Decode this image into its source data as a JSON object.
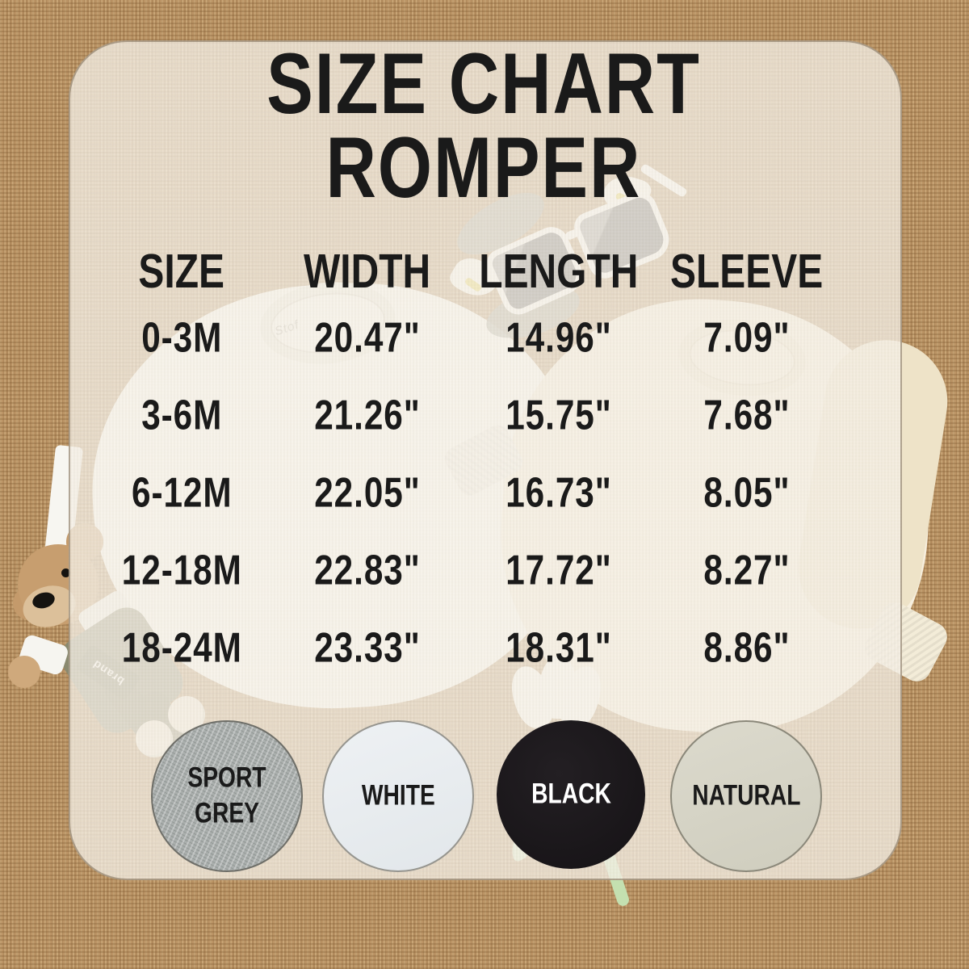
{
  "title": {
    "line1": "SIZE CHART",
    "line2": "ROMPER"
  },
  "table": {
    "headers": {
      "size": "SIZE",
      "width": "WIDTH",
      "length": "LENGTH",
      "sleeve": "SLEEVE"
    },
    "rows": [
      {
        "size": "0-3M",
        "width": "20.47\"",
        "length": "14.96\"",
        "sleeve": "7.09\""
      },
      {
        "size": "3-6M",
        "width": "21.26\"",
        "length": "15.75\"",
        "sleeve": "7.68\""
      },
      {
        "size": "6-12M",
        "width": "22.05\"",
        "length": "16.73\"",
        "sleeve": "8.05\""
      },
      {
        "size": "12-18M",
        "width": "22.83\"",
        "length": "17.72\"",
        "sleeve": "8.27\""
      },
      {
        "size": "18-24M",
        "width": "23.33\"",
        "length": "18.31\"",
        "sleeve": "8.86\""
      }
    ]
  },
  "swatches": [
    {
      "label": "SPORT GREY",
      "fill": "#a9aeac",
      "text_color": "#1a1a1a"
    },
    {
      "label": "WHITE",
      "fill": "#e9edf0",
      "text_color": "#1a1a1a"
    },
    {
      "label": "BLACK",
      "fill": "#1a171a",
      "text_color": "#ffffff"
    },
    {
      "label": "NATURAL",
      "fill": "#d6d4c7",
      "text_color": "#1a1a1a"
    }
  ],
  "photo": {
    "bear_patch_label": "brand",
    "collar_logo": "Stof"
  },
  "palette": {
    "burlap": "#bb9465",
    "panel": "#efe8da",
    "text": "#1a1a1a"
  },
  "chart_data": {
    "type": "table",
    "title": "SIZE CHART ROMPER",
    "columns": [
      "SIZE",
      "WIDTH",
      "LENGTH",
      "SLEEVE"
    ],
    "rows": [
      [
        "0-3M",
        "20.47\"",
        "14.96\"",
        "7.09\""
      ],
      [
        "3-6M",
        "21.26\"",
        "15.75\"",
        "7.68\""
      ],
      [
        "6-12M",
        "22.05\"",
        "16.73\"",
        "8.05\""
      ],
      [
        "12-18M",
        "22.83\"",
        "17.72\"",
        "8.27\""
      ],
      [
        "18-24M",
        "23.33\"",
        "18.31\"",
        "8.86\""
      ]
    ],
    "color_options": [
      "SPORT GREY",
      "WHITE",
      "BLACK",
      "NATURAL"
    ]
  }
}
